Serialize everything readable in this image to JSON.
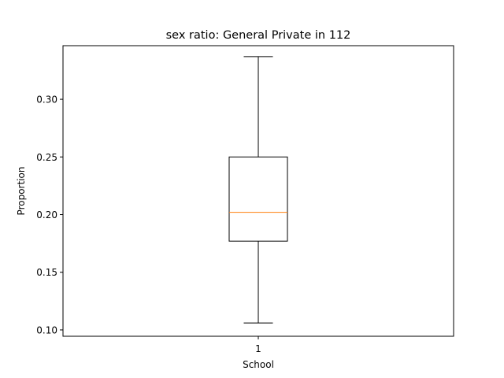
{
  "chart_data": {
    "type": "boxplot",
    "title": "sex ratio: General Private in 112",
    "xlabel": "School",
    "ylabel": "Proportion",
    "categories": [
      "1"
    ],
    "ylim": [
      0.0945,
      0.3465
    ],
    "yticks": [
      0.1,
      0.15,
      0.2,
      0.25,
      0.3
    ],
    "ytick_labels": [
      "0.10",
      "0.15",
      "0.20",
      "0.25",
      "0.30"
    ],
    "series": [
      {
        "whisker_low": 0.106,
        "q1": 0.177,
        "median": 0.202,
        "q3": 0.25,
        "whisker_high": 0.337
      }
    ],
    "grid": false,
    "colors": {
      "box": "#000000",
      "median": "#ff7f0e",
      "whisker": "#000000"
    }
  }
}
